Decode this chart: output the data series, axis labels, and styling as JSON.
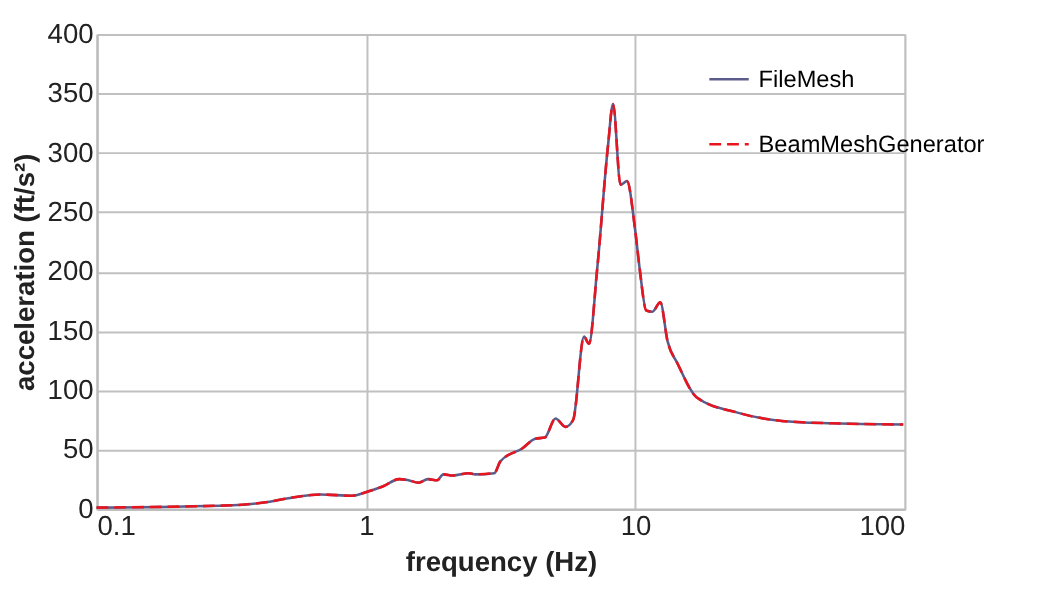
{
  "chart_data": {
    "type": "line",
    "xlabel": "frequency (Hz)",
    "ylabel": "acceleration (ft/s²)",
    "x": [
      0.1,
      0.32,
      0.44,
      0.55,
      0.68,
      0.89,
      1.0,
      1.16,
      1.33,
      1.44,
      1.57,
      1.7,
      1.84,
      1.94,
      2.11,
      2.41,
      2.55,
      3.0,
      3.16,
      3.82,
      4.26,
      4.62,
      5.06,
      5.52,
      5.89,
      6.46,
      6.74,
      7.23,
      7.94,
      8.28,
      8.83,
      9.33,
      10.0,
      10.4,
      11.0,
      11.6,
      12.4,
      13.2,
      14.4,
      16.9,
      24,
      35,
      54,
      99
    ],
    "series": [
      {
        "name": "FileMesh",
        "color": "#5c5c8c",
        "line_style": "solid",
        "values": [
          1,
          3,
          6,
          10,
          12,
          11,
          14,
          19,
          25,
          24,
          22,
          25,
          24,
          29,
          28,
          30,
          29,
          30,
          40,
          51,
          59,
          60,
          76,
          69,
          75,
          145,
          139,
          202,
          307,
          341,
          273,
          276,
          235,
          202,
          167,
          166,
          174,
          141,
          122,
          94,
          81,
          74,
          72,
          71
        ]
      },
      {
        "name": "BeamMeshGenerator",
        "color": "#e8141e",
        "line_style": "dashed",
        "values": [
          1,
          3,
          6,
          10,
          12,
          11,
          14,
          19,
          25,
          24,
          22,
          25,
          24,
          29,
          28,
          30,
          29,
          30,
          40,
          51,
          59,
          60,
          76,
          69,
          75,
          145,
          139,
          202,
          307,
          341,
          273,
          276,
          235,
          202,
          167,
          166,
          174,
          141,
          122,
          94,
          81,
          74,
          72,
          71
        ]
      }
    ],
    "xlim": [
      0.1,
      100
    ],
    "xticks": [
      0.1,
      1,
      10,
      100
    ],
    "ylim": [
      0,
      400
    ],
    "yticks": [
      0,
      50,
      100,
      150,
      200,
      250,
      300,
      350,
      400
    ],
    "log": "x",
    "grid": true,
    "legend": "top right"
  }
}
